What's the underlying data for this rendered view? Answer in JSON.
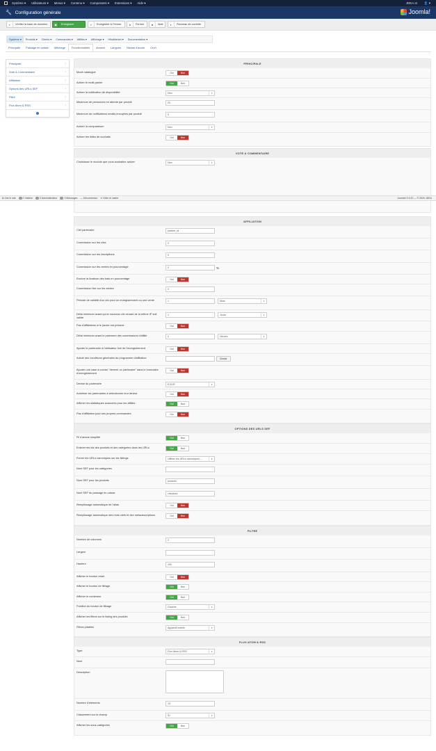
{
  "topnav": {
    "items": [
      "Système ▾",
      "Utilisateurs ▾",
      "Menus ▾",
      "Contenu ▾",
      "Composants ▾",
      "Extensions ▾",
      "Aide ▾"
    ],
    "site": "JDEA.st",
    "user": "👤 ▾"
  },
  "header": {
    "title": "Configuration générale",
    "logo": "Joomla!"
  },
  "toolbar": {
    "buttons": [
      {
        "label": "Vérifier la base de données",
        "icon": "database-icon"
      },
      {
        "label": "Enregistrer",
        "icon": "save-icon"
      },
      {
        "label": "Enregistrer & Fermer",
        "icon": "check-icon"
      },
      {
        "label": "Fermer",
        "icon": "close-icon"
      },
      {
        "label": "Aide",
        "icon": "help-icon"
      },
      {
        "label": "Panneau de contrôle",
        "icon": "dashboard-icon"
      }
    ]
  },
  "menu": {
    "items": [
      "Système ▾",
      "Produits ▾",
      "Clients ▾",
      "Commandes ▾",
      "Affiliés ▾",
      "Affichage ▾",
      "HikaMarket ▾",
      "Documentation ▾"
    ],
    "active": 0
  },
  "tabs": {
    "items": [
      "Principale",
      "Passage en caisse",
      "Affichage",
      "Fonctionnalités",
      "Avancé",
      "Langues",
      "Niveau d'accès",
      "Cron"
    ],
    "active": 3
  },
  "sidebar": {
    "items": [
      "Principale",
      "Vote & Commentaire",
      "Affiliation",
      "Options des URLs SEF",
      "Filtre",
      "Flux Atom & RSS"
    ]
  },
  "colors": {
    "accent": "#1b3766",
    "success": "#46a546",
    "danger": "#bd362f",
    "link": "#2a5a9a"
  },
  "toggle": {
    "yes": "Oui",
    "no": "Non"
  },
  "sections": [
    {
      "title": "PRINCIPALE",
      "rows": [
        {
          "label": "Mode catalogue",
          "type": "toggle",
          "value": "no"
        },
        {
          "label": "Activer le multi-panier",
          "type": "toggle",
          "value": "yes"
        },
        {
          "label": "Activer la notification de disponibilité",
          "type": "select",
          "value": "Non"
        },
        {
          "label": "Maximum de personnes en attente par produit",
          "type": "input",
          "value": "20"
        },
        {
          "label": "Maximum de notifications emails envoyées par produit",
          "type": "input",
          "value": "5"
        },
        {
          "label": "Activer la comparaison",
          "type": "select",
          "value": "Non"
        },
        {
          "label": "Activer les listes de souhaits",
          "type": "toggle",
          "value": "no"
        }
      ]
    },
    {
      "title": "VOTE & COMMENTAIRE",
      "rows": [
        {
          "label": "Choisissez le module que vous souhaitez activer",
          "type": "select",
          "value": "Non"
        }
      ]
    },
    {
      "title": "AFFILIATION",
      "rows": [
        {
          "label": "Clef partenaire",
          "type": "input",
          "value": "partner_id"
        },
        {
          "label": "Commission sur les clics",
          "type": "input",
          "value": "0"
        },
        {
          "label": "Commission sur les inscriptions",
          "type": "input",
          "value": "0"
        },
        {
          "label": "Commission sur les ventes en pourcentage",
          "type": "input",
          "value": "0",
          "suffix": "%"
        },
        {
          "label": "Exclure la livraison des frais en pourcentage",
          "type": "toggle",
          "value": "no"
        },
        {
          "label": "Commission fixe sur les ventes",
          "type": "input",
          "value": "0"
        },
        {
          "label": "Période de validité d'un clic pour un enregistrement ou une vente",
          "type": "input-select",
          "value": "1",
          "select": "Mois"
        },
        {
          "label": "Délai minimum avant qu'un nouveau clic venant de la même IP soit valide",
          "type": "input-select",
          "value": "1",
          "select": "Jours"
        },
        {
          "label": "Pas d'affiliations si le panier est présent.",
          "type": "toggle",
          "value": "no"
        },
        {
          "label": "Délai minimum avant le paiement des commissions d'affilié",
          "type": "input-select",
          "value": "0",
          "select": "Heures"
        },
        {
          "label": "Ajouter le partenaire à l'utilisateur lors de l'enregistrement",
          "type": "toggle",
          "value": "no"
        },
        {
          "label": "Article des conditions générales du programme d'affiliation",
          "type": "input-button",
          "value": "",
          "button": "Choisir"
        },
        {
          "label": "Ajouter une case à cocher \"devenir un partenaire\" dans le formulaire d'enregistrement",
          "type": "toggle",
          "value": "no"
        },
        {
          "label": "Devise du partenaire",
          "type": "select",
          "value": "€ EUR"
        },
        {
          "label": "Autoriser les partenaires à sélectionner leur devise",
          "type": "toggle",
          "value": "no"
        },
        {
          "label": "Afficher les statistiques avancées pour les affiliés",
          "type": "toggle",
          "value": "yes"
        },
        {
          "label": "Pas d'affiliation pour ses propres commandes",
          "type": "toggle",
          "value": "no"
        }
      ]
    },
    {
      "title": "OPTIONS DES URLS SEF",
      "rows": [
        {
          "label": "Fil d'ariane simplifié",
          "type": "toggle",
          "value": "yes"
        },
        {
          "label": "Enlever les ids des produits et des catégories dans les URLs",
          "type": "toggle",
          "value": "yes"
        },
        {
          "label": "Forcer les URLs canoniques sur les listings",
          "type": "select",
          "value": "Utiliser les URLs canoniques ..."
        },
        {
          "label": "Nom SEF pour les catégories",
          "type": "input",
          "value": ""
        },
        {
          "label": "Nom SEF pour les produits",
          "type": "input",
          "value": "produits"
        },
        {
          "label": "Nom SEF du passage en caisse",
          "type": "input",
          "value": "checkout"
        },
        {
          "label": "Remplissage automatique de l'alias",
          "type": "toggle",
          "value": "no"
        },
        {
          "label": "Remplissage automatique des mots clefs et des metadescriptions",
          "type": "toggle",
          "value": "no"
        }
      ]
    },
    {
      "title": "FILTRE",
      "rows": [
        {
          "label": "Nombre de colonnes",
          "type": "input",
          "value": "2"
        },
        {
          "label": "Largeur",
          "type": "input",
          "value": ""
        },
        {
          "label": "Hauteur",
          "type": "input",
          "value": "100"
        },
        {
          "label": "Afficher le bouton reset",
          "type": "toggle",
          "value": "no"
        },
        {
          "label": "Afficher le bouton de filtrage",
          "type": "toggle",
          "value": "yes"
        },
        {
          "label": "Afficher le conteneur",
          "type": "toggle",
          "value": "yes"
        },
        {
          "label": "Position du bouton de filtrage",
          "type": "select",
          "value": "Gauche"
        },
        {
          "label": "Afficher les filtres sur le listing des produits",
          "type": "toggle",
          "value": "yes"
        },
        {
          "label": "Filtres pliables",
          "type": "select",
          "value": "Appareil mobile"
        }
      ]
    },
    {
      "title": "FLUX ATOM & RSS",
      "rows": [
        {
          "label": "Type",
          "type": "select",
          "value": "Flux Atom & RSS"
        },
        {
          "label": "Nom",
          "type": "input",
          "value": ""
        },
        {
          "label": "Description",
          "type": "textarea",
          "value": ""
        },
        {
          "label": "Nombre d'éléments",
          "type": "input",
          "value": "10"
        },
        {
          "label": "Classement sur le champ",
          "type": "select",
          "value": "ID"
        },
        {
          "label": "Afficher les sous-catégories",
          "type": "toggle",
          "value": "yes"
        }
      ]
    }
  ],
  "statusbar": {
    "items": [
      "Voir le site",
      "0  Visiteur",
      "0  Administrateur",
      "0  Messages",
      "— Déconnexion",
      "✕ Vider le cache"
    ],
    "version": "Joomla! 3.9.20 — © 2020 JDEA"
  }
}
